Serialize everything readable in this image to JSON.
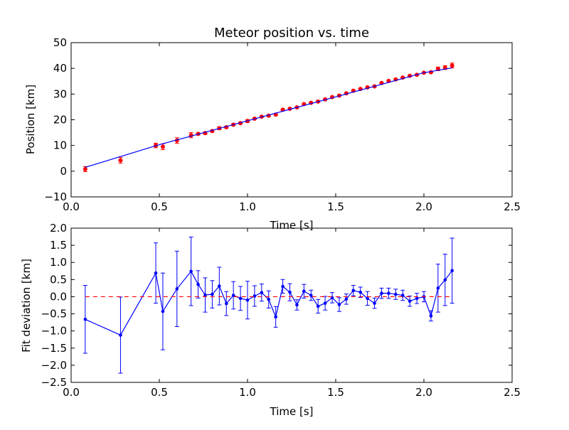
{
  "colors": {
    "fit_line": "#0000ff",
    "position_points": "#ff0000",
    "deviation_line": "#0000ff",
    "zero_line": "#ff0000"
  },
  "chart_data": [
    {
      "type": "scatter",
      "title": "Meteor position vs. time",
      "xlabel": "Time [s]",
      "ylabel": "Position [km]",
      "xlim": [
        0.0,
        2.5
      ],
      "ylim": [
        -10,
        50
      ],
      "xticks": [
        "0.0",
        "0.5",
        "1.0",
        "1.5",
        "2.0",
        "2.5"
      ],
      "yticks": [
        "−10",
        "0",
        "10",
        "20",
        "30",
        "40",
        "50"
      ],
      "grid": false,
      "series": [
        {
          "style": "points-with-errorbars",
          "color": "red",
          "x": [
            0.08,
            0.28,
            0.48,
            0.52,
            0.6,
            0.68,
            0.72,
            0.76,
            0.8,
            0.84,
            0.88,
            0.92,
            0.96,
            1.0,
            1.04,
            1.08,
            1.12,
            1.16,
            1.2,
            1.24,
            1.28,
            1.32,
            1.36,
            1.4,
            1.44,
            1.48,
            1.52,
            1.56,
            1.6,
            1.64,
            1.68,
            1.72,
            1.76,
            1.8,
            1.84,
            1.88,
            1.92,
            1.96,
            2.0,
            2.04,
            2.08,
            2.12,
            2.16
          ],
          "y": [
            0.8,
            4.2,
            10.0,
            9.5,
            11.9,
            14.0,
            14.5,
            14.8,
            15.6,
            16.7,
            17.1,
            18.1,
            18.7,
            19.5,
            20.4,
            21.2,
            21.6,
            22.0,
            23.9,
            24.3,
            24.8,
            26.1,
            26.6,
            27.1,
            27.9,
            28.8,
            29.4,
            30.3,
            31.3,
            32.0,
            32.6,
            33.0,
            34.3,
            35.1,
            35.7,
            36.4,
            37.1,
            37.5,
            38.3,
            38.5,
            39.8,
            40.3,
            41.1
          ],
          "yerr": [
            0.99,
            1.11,
            0.88,
            1.12,
            1.1,
            1.0,
            0.4,
            0.5,
            0.4,
            0.55,
            0.35,
            0.4,
            0.35,
            0.55,
            0.3,
            0.25,
            0.25,
            0.3,
            0.2,
            0.25,
            0.15,
            0.2,
            0.15,
            0.2,
            0.2,
            0.15,
            0.2,
            0.15,
            0.15,
            0.15,
            0.2,
            0.15,
            0.15,
            0.15,
            0.15,
            0.15,
            0.15,
            0.15,
            0.15,
            0.15,
            0.7,
            0.75,
            0.95
          ]
        },
        {
          "style": "line",
          "color": "blue",
          "x": [
            0.08,
            0.5,
            1.0,
            1.5,
            2.0,
            2.16
          ],
          "y": [
            1.5,
            10.3,
            19.6,
            28.9,
            38.3,
            40.2
          ]
        }
      ]
    },
    {
      "type": "line",
      "title": "",
      "xlabel": "Time [s]",
      "ylabel": "Fit deviation [km]",
      "xlim": [
        0.0,
        2.5
      ],
      "ylim": [
        -2.5,
        2.0
      ],
      "xticks": [
        "0.0",
        "0.5",
        "1.0",
        "1.5",
        "2.0",
        "2.5"
      ],
      "yticks": [
        "−2.5",
        "−2.0",
        "−1.5",
        "−1.0",
        "−0.5",
        "0.0",
        "0.5",
        "1.0",
        "1.5",
        "2.0"
      ],
      "grid": false,
      "series": [
        {
          "style": "line-markers-errorbars",
          "color": "blue",
          "x": [
            0.08,
            0.28,
            0.48,
            0.52,
            0.6,
            0.68,
            0.72,
            0.76,
            0.8,
            0.84,
            0.88,
            0.92,
            0.96,
            1.0,
            1.04,
            1.08,
            1.12,
            1.16,
            1.2,
            1.24,
            1.28,
            1.32,
            1.36,
            1.4,
            1.44,
            1.48,
            1.52,
            1.56,
            1.6,
            1.64,
            1.68,
            1.72,
            1.76,
            1.8,
            1.84,
            1.88,
            1.92,
            1.96,
            2.0,
            2.04,
            2.08,
            2.12,
            2.16
          ],
          "y": [
            -0.66,
            -1.12,
            0.69,
            -0.43,
            0.23,
            0.74,
            0.36,
            0.05,
            0.07,
            0.31,
            -0.2,
            0.04,
            -0.05,
            -0.1,
            0.02,
            0.12,
            -0.08,
            -0.59,
            0.3,
            0.13,
            -0.24,
            0.16,
            0.04,
            -0.28,
            -0.19,
            -0.03,
            -0.23,
            -0.07,
            0.18,
            0.13,
            -0.05,
            -0.19,
            0.1,
            0.1,
            0.07,
            0.04,
            -0.13,
            -0.05,
            0.0,
            -0.56,
            0.25,
            0.49,
            0.76
          ],
          "yerr": [
            0.99,
            1.11,
            0.88,
            1.12,
            1.1,
            1.0,
            0.4,
            0.5,
            0.4,
            0.55,
            0.35,
            0.4,
            0.35,
            0.55,
            0.3,
            0.25,
            0.25,
            0.3,
            0.2,
            0.25,
            0.15,
            0.2,
            0.15,
            0.2,
            0.2,
            0.15,
            0.2,
            0.15,
            0.15,
            0.15,
            0.2,
            0.15,
            0.15,
            0.15,
            0.15,
            0.15,
            0.15,
            0.15,
            0.15,
            0.15,
            0.7,
            0.75,
            0.95
          ]
        },
        {
          "style": "dashed-reference",
          "color": "red",
          "x": [
            0.08,
            2.16
          ],
          "y": [
            0.0,
            0.0
          ]
        }
      ]
    }
  ]
}
